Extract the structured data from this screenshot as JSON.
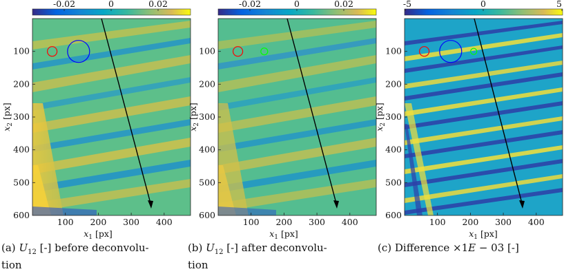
{
  "chart_data": [
    {
      "type": "heatmap",
      "xlabel": "x1 [px]",
      "ylabel": "x2 [px]",
      "xlim": [
        0,
        480
      ],
      "ylim": [
        600,
        0
      ],
      "xticks": [
        100,
        200,
        300,
        400
      ],
      "yticks": [
        100,
        200,
        300,
        400,
        500,
        600
      ],
      "colorbar": {
        "range": [
          -0.035,
          0.035
        ],
        "ticks": [
          -0.02,
          0,
          0.02
        ],
        "tick_labels": [
          "-0.02",
          "0",
          "0.02"
        ],
        "colormap": "parula"
      },
      "markers": [
        {
          "shape": "circle",
          "color": "#ff0000",
          "center": [
            60,
            100
          ],
          "radius": 14
        },
        {
          "shape": "circle",
          "color": "#0000ff",
          "center": [
            140,
            100
          ],
          "radius": 33
        }
      ],
      "arrow": {
        "from": [
          210,
          0
        ],
        "to": [
          365,
          585
        ],
        "color": "#000000"
      }
    },
    {
      "type": "heatmap",
      "xlabel": "x1 [px]",
      "ylabel": "x2 [px]",
      "xlim": [
        0,
        480
      ],
      "ylim": [
        600,
        0
      ],
      "xticks": [
        100,
        200,
        300,
        400
      ],
      "yticks": [
        100,
        200,
        300,
        400,
        500,
        600
      ],
      "colorbar": {
        "range": [
          -0.035,
          0.035
        ],
        "ticks": [
          -0.02,
          0,
          0.02
        ],
        "tick_labels": [
          "-0.02",
          "0",
          "0.02"
        ],
        "colormap": "parula"
      },
      "markers": [
        {
          "shape": "circle",
          "color": "#ff0000",
          "center": [
            60,
            100
          ],
          "radius": 14
        },
        {
          "shape": "circle",
          "color": "#00ff00",
          "center": [
            140,
            100
          ],
          "radius": 9
        }
      ],
      "arrow": {
        "from": [
          210,
          0
        ],
        "to": [
          365,
          585
        ],
        "color": "#000000"
      }
    },
    {
      "type": "heatmap",
      "xlabel": "x1 [px]",
      "ylabel": "x2 [px]",
      "xlim": [
        0,
        480
      ],
      "ylim": [
        600,
        0
      ],
      "xticks": [
        100,
        200,
        300,
        400
      ],
      "yticks": [
        100,
        200,
        300,
        400,
        500,
        600
      ],
      "colorbar": {
        "range": [
          -5,
          5
        ],
        "ticks": [
          -5,
          0,
          5
        ],
        "tick_labels": [
          "-5",
          "0",
          "5"
        ],
        "colormap": "parula"
      },
      "markers": [
        {
          "shape": "circle",
          "color": "#ff0000",
          "center": [
            60,
            100
          ],
          "radius": 14
        },
        {
          "shape": "circle",
          "color": "#0000ff",
          "center": [
            140,
            100
          ],
          "radius": 33
        },
        {
          "shape": "circle",
          "color": "#00ff00",
          "center": [
            210,
            100
          ],
          "radius": 9
        }
      ],
      "arrow": {
        "from": [
          210,
          0
        ],
        "to": [
          365,
          585
        ],
        "color": "#000000"
      }
    }
  ],
  "captions": [
    {
      "label": "(a)",
      "sym": "U",
      "sub": "12",
      "text": "[-] before deconvolu-",
      "cont": "tion"
    },
    {
      "label": "(b)",
      "sym": "U",
      "sub": "12",
      "text": "[-] after deconvolu-",
      "cont": "tion"
    },
    {
      "label": "(c)",
      "pre": "Difference ×1",
      "sym": "E",
      "post": " − 03 [-]"
    }
  ],
  "colors": {
    "parula_low": "#352a87",
    "parula_mid": "#12b1ba",
    "parula_high": "#f9fb0e",
    "teal_bg": "#2bb89b"
  }
}
